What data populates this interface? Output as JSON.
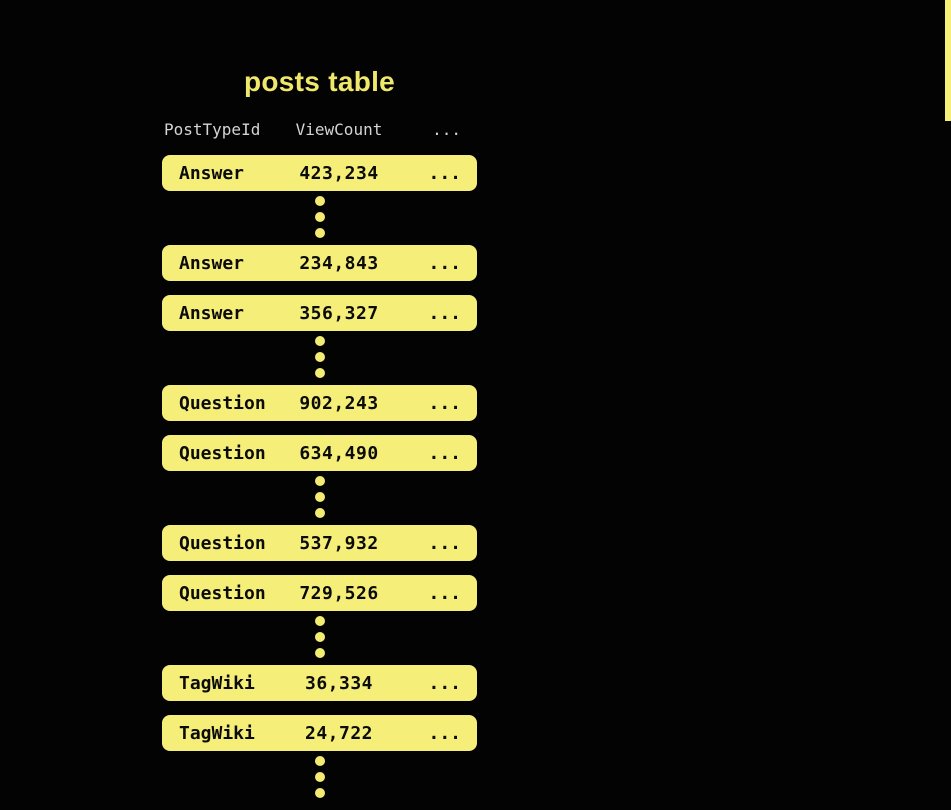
{
  "title": "posts table",
  "table": {
    "columns": [
      "PostTypeId",
      "ViewCount",
      "..."
    ],
    "rows": [
      {
        "post_type": "Answer",
        "view_count": "423,234",
        "more": "...",
        "dots_after": true
      },
      {
        "post_type": "Answer",
        "view_count": "234,843",
        "more": "...",
        "dots_after": false
      },
      {
        "post_type": "Answer",
        "view_count": "356,327",
        "more": "...",
        "dots_after": true
      },
      {
        "post_type": "Question",
        "view_count": "902,243",
        "more": "...",
        "dots_after": false
      },
      {
        "post_type": "Question",
        "view_count": "634,490",
        "more": "...",
        "dots_after": true
      },
      {
        "post_type": "Question",
        "view_count": "537,932",
        "more": "...",
        "dots_after": false
      },
      {
        "post_type": "Question",
        "view_count": "729,526",
        "more": "...",
        "dots_after": true
      },
      {
        "post_type": "TagWiki",
        "view_count": "36,334",
        "more": "...",
        "dots_after": false
      },
      {
        "post_type": "TagWiki",
        "view_count": "24,722",
        "more": "...",
        "dots_after": true
      }
    ]
  },
  "colors": {
    "background": "#030303",
    "row_fill": "#f5ee79",
    "title_text": "#f0e86a",
    "header_text": "#d4d4d4",
    "row_text": "#0b0b09",
    "dot_fill": "#f3ec74"
  }
}
